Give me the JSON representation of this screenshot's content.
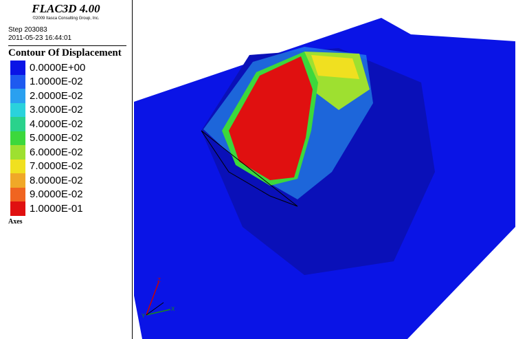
{
  "header": {
    "title": "FLAC3D 4.00",
    "copyright": "©2009 Itasca Consulting Group, Inc.",
    "step": "Step 203083",
    "timestamp": "2011-05-23 16:44:01"
  },
  "legend": {
    "title": "Contour Of Displacement",
    "items": [
      {
        "label": "0.0000E+00",
        "color": "#0a14e6"
      },
      {
        "label": "1.0000E-02",
        "color": "#1e5af0"
      },
      {
        "label": "2.0000E-02",
        "color": "#2aa0f0"
      },
      {
        "label": "3.0000E-02",
        "color": "#2ad2dc"
      },
      {
        "label": "4.0000E-02",
        "color": "#2ad28c"
      },
      {
        "label": "5.0000E-02",
        "color": "#3cd83c"
      },
      {
        "label": "6.0000E-02",
        "color": "#9ee030"
      },
      {
        "label": "7.0000E-02",
        "color": "#f0e020"
      },
      {
        "label": "8.0000E-02",
        "color": "#f0a828"
      },
      {
        "label": "9.0000E-02",
        "color": "#f06420"
      },
      {
        "label": "1.0000E-01",
        "color": "#e01010"
      }
    ]
  },
  "axes": {
    "title": "Axes",
    "labels": [
      "Z",
      "X",
      "Y"
    ]
  }
}
